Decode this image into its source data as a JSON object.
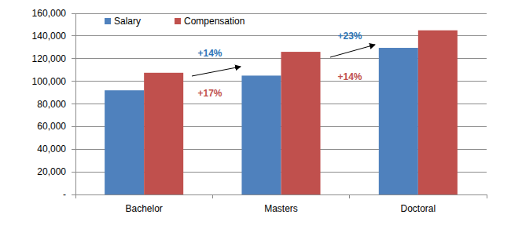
{
  "chart_data": {
    "type": "bar",
    "categories": [
      "Bachelor",
      "Masters",
      "Doctoral"
    ],
    "series": [
      {
        "name": "Salary",
        "color": "#4f81bd",
        "values": [
          92000,
          105000,
          129500
        ]
      },
      {
        "name": "Compensation",
        "color": "#c0504d",
        "values": [
          107500,
          126000,
          145000
        ]
      }
    ],
    "ylim": [
      0,
      160000
    ],
    "yticks": [
      {
        "value": 0,
        "label": "-"
      },
      {
        "value": 20000,
        "label": "20,000"
      },
      {
        "value": 40000,
        "label": "40,000"
      },
      {
        "value": 60000,
        "label": "60,000"
      },
      {
        "value": 80000,
        "label": "80,000"
      },
      {
        "value": 100000,
        "label": "100,000"
      },
      {
        "value": 120000,
        "label": "120,000"
      },
      {
        "value": 140000,
        "label": "140,000"
      },
      {
        "value": 160000,
        "label": "160,000"
      }
    ],
    "grid": true,
    "legend": "top-left",
    "data_labels": false,
    "annotations": [
      {
        "text": "+14%",
        "color": "#2e75b6"
      },
      {
        "text": "+17%",
        "color": "#c0504d"
      },
      {
        "text": "+23%",
        "color": "#2e75b6"
      },
      {
        "text": "+14%",
        "color": "#c0504d"
      }
    ]
  }
}
